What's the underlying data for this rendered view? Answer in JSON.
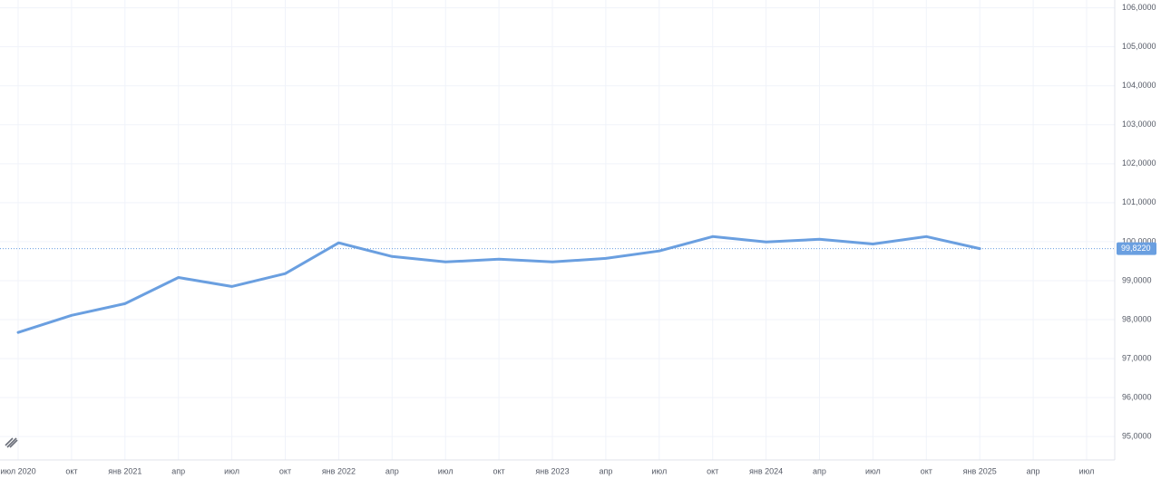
{
  "chart_data": {
    "type": "line",
    "categories": [
      "июл 2020",
      "окт",
      "янв 2021",
      "апр",
      "июл",
      "окт",
      "янв 2022",
      "апр",
      "июл",
      "окт",
      "янв 2023",
      "апр",
      "июл",
      "окт",
      "янв 2024",
      "апр",
      "июл",
      "окт",
      "янв 2025",
      "апр",
      "июл"
    ],
    "values": [
      97.67,
      98.11,
      98.41,
      99.08,
      98.85,
      99.18,
      99.97,
      99.62,
      99.48,
      99.55,
      99.48,
      99.57,
      99.76,
      100.13,
      99.99,
      100.06,
      99.94,
      100.13,
      99.822,
      null,
      null
    ],
    "value_labels": [
      null,
      null,
      null,
      null,
      null,
      null,
      null,
      null,
      null,
      null,
      null,
      null,
      null,
      null,
      null,
      null,
      null,
      null,
      "99,8220",
      null,
      null
    ],
    "color": "#6a9fe0",
    "ylim": [
      94.4,
      106.2
    ],
    "yticks": [
      {
        "value": 95,
        "label": "95,0000"
      },
      {
        "value": 96,
        "label": "96,0000"
      },
      {
        "value": 97,
        "label": "97,0000"
      },
      {
        "value": 98,
        "label": "98,0000"
      },
      {
        "value": 99,
        "label": "99,0000"
      },
      {
        "value": 100,
        "label": "100,0000"
      },
      {
        "value": 101,
        "label": "101,0000"
      },
      {
        "value": 102,
        "label": "102,0000"
      },
      {
        "value": 103,
        "label": "103,0000"
      },
      {
        "value": 104,
        "label": "104,0000"
      },
      {
        "value": 105,
        "label": "105,0000"
      },
      {
        "value": 106,
        "label": "106,0000"
      }
    ],
    "grid": true
  }
}
